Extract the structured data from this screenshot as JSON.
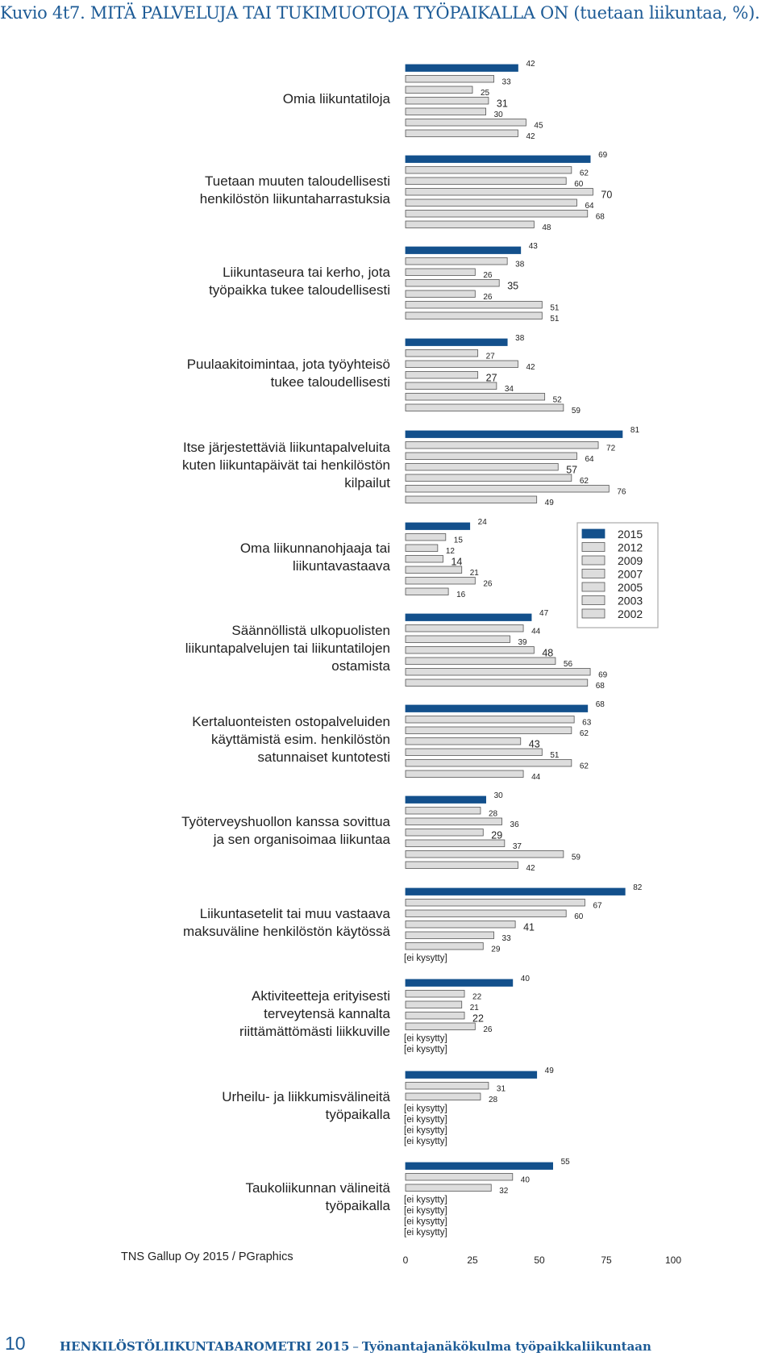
{
  "page": {
    "title": "Kuvio 4t7. MITÄ PALVELUJA TAI TUKIMUOTOJA TYÖPAIKALLA ON (tuetaan liikuntaa, %).",
    "source": "TNS Gallup Oy  2015 / PGraphics",
    "footer_page_number": "10",
    "footer_publication": "HENKILÖSTÖLIIKUNTABAROMETRI 2015",
    "footer_dash": "–",
    "footer_subtitle": "Työnantajanäkökulma työpaikkaliikuntaan"
  },
  "colors": {
    "current_year": "#13508c",
    "other_years": "#dddddd",
    "outline": "#555555",
    "text_blue": "#1d5b96"
  },
  "chart_data": {
    "type": "bar",
    "orientation": "horizontal",
    "xlim": [
      0,
      100
    ],
    "xticks": [
      0,
      25,
      50,
      75,
      100
    ],
    "grid": false,
    "legend_position": "right",
    "not_asked_label": "[ei kysytty]",
    "series": [
      "2015",
      "2012",
      "2009",
      "2007",
      "2005",
      "2003",
      "2002"
    ],
    "categories": [
      {
        "label": [
          "Omia liikuntatiloja"
        ],
        "values": [
          42,
          33,
          25,
          31,
          30,
          45,
          42
        ]
      },
      {
        "label": [
          "Tuetaan muuten taloudellisesti",
          "henkilöstön liikuntaharrastuksia"
        ],
        "values": [
          69,
          62,
          60,
          70,
          64,
          68,
          48
        ]
      },
      {
        "label": [
          "Liikuntaseura tai kerho, jota",
          "työpaikka tukee taloudellisesti"
        ],
        "values": [
          43,
          38,
          26,
          35,
          26,
          51,
          51
        ]
      },
      {
        "label": [
          "Puulaakitoimintaa, jota työyhteisö",
          "tukee taloudellisesti"
        ],
        "values": [
          38,
          27,
          42,
          27,
          34,
          52,
          59
        ]
      },
      {
        "label": [
          "Itse järjestettäviä liikuntapalveluita",
          "kuten liikuntapäivät tai henkilöstön",
          "kilpailut"
        ],
        "values": [
          81,
          72,
          64,
          57,
          62,
          76,
          49
        ]
      },
      {
        "label": [
          "Oma liikunnanohjaaja tai",
          "liikuntavastaava"
        ],
        "values": [
          24,
          15,
          12,
          14,
          21,
          26,
          16
        ]
      },
      {
        "label": [
          "Säännöllistä ulkopuolisten",
          "liikuntapalvelujen tai liikuntatilojen",
          "ostamista"
        ],
        "values": [
          47,
          44,
          39,
          48,
          56,
          69,
          68
        ]
      },
      {
        "label": [
          "Kertaluonteisten ostopalveluiden",
          "käyttämistä esim. henkilöstön",
          "satunnaiset kuntotesti"
        ],
        "values": [
          68,
          63,
          62,
          43,
          51,
          62,
          44
        ]
      },
      {
        "label": [
          "Työterveyshuollon kanssa sovittua",
          "ja sen organisoimaa liikuntaa"
        ],
        "values": [
          30,
          28,
          36,
          29,
          37,
          59,
          42
        ]
      },
      {
        "label": [
          "Liikuntasetelit tai muu vastaava",
          "maksuväline henkilöstön käytössä"
        ],
        "values": [
          82,
          67,
          60,
          41,
          33,
          29,
          null
        ]
      },
      {
        "label": [
          "Aktiviteetteja erityisesti",
          "terveytensä kannalta",
          "riittämättömästi liikkuville"
        ],
        "values": [
          40,
          22,
          21,
          22,
          26,
          null,
          null
        ]
      },
      {
        "label": [
          "Urheilu- ja liikkumisvälineitä",
          "työpaikalla"
        ],
        "values": [
          49,
          31,
          28,
          null,
          null,
          null,
          null
        ]
      },
      {
        "label": [
          "Taukoliikunnan välineitä",
          "työpaikalla"
        ],
        "values": [
          55,
          40,
          32,
          null,
          null,
          null,
          null
        ]
      }
    ]
  }
}
